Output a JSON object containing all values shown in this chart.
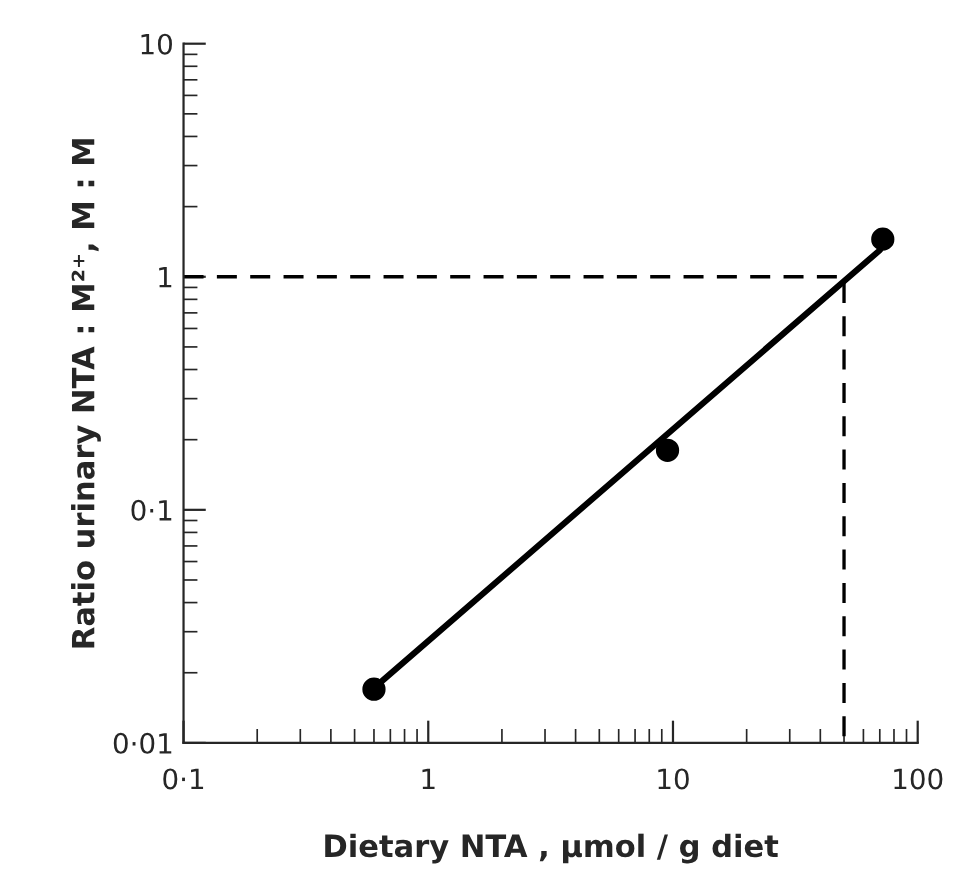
{
  "chart_data": {
    "type": "scatter",
    "xlabel": "Dietary NTA , µmol / g diet",
    "ylabel": "Ratio urinary NTA : M²⁺, M : M",
    "log": "xy",
    "grid": false,
    "xlim": [
      0.1,
      100
    ],
    "ylim": [
      0.01,
      10
    ],
    "xticks": [
      {
        "value": 0.1,
        "label": "0·1"
      },
      1,
      10,
      100
    ],
    "yticks": [
      {
        "value": 0.01,
        "label": "0·01"
      },
      {
        "value": 0.1,
        "label": "0·1"
      },
      1,
      10
    ],
    "series": [
      {
        "color": "#000000",
        "marker": "circle",
        "x": [
          0.6,
          9.5,
          72
        ],
        "values": [
          0.017,
          0.18,
          1.45
        ]
      },
      {
        "type": "line",
        "color": "#000000",
        "marker": "none",
        "line_style": "solid",
        "x": [
          0.65,
          70
        ],
        "values": [
          0.0185,
          1.3
        ]
      },
      {
        "type": "line",
        "color": "#000000",
        "marker": "none",
        "line_style": "dashed",
        "x": [
          0.1,
          50,
          50
        ],
        "values": [
          1,
          1,
          0.01
        ]
      }
    ]
  }
}
